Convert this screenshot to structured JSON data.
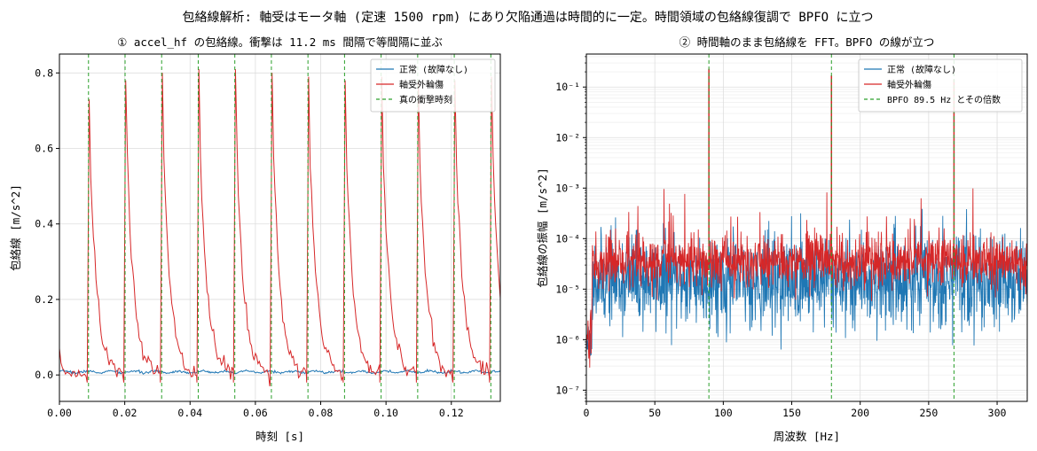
{
  "suptitle": "包絡線解析: 軸受はモータ軸 (定速 1500 rpm) にあり欠陥通過は時間的に一定。時間領域の包絡線復調で BPFO に立つ",
  "colors": {
    "normal": "#1f77b4",
    "fault": "#d62728",
    "marker": "#2ca02c",
    "grid": "#dddddd"
  },
  "chart_data": [
    {
      "type": "line",
      "title": "① accel_hf の包絡線。衝撃は 11.2 ms 間隔で等間隔に並ぶ",
      "xlabel": "時刻 [s]",
      "ylabel": "包絡線 [m/s^2]",
      "xlim": [
        0,
        0.135
      ],
      "ylim": [
        -0.07,
        0.85
      ],
      "xticks": [
        0,
        0.02,
        0.04,
        0.06,
        0.08,
        0.1,
        0.12
      ],
      "xtick_labels": [
        "0.00",
        "0.02",
        "0.04",
        "0.06",
        "0.08",
        "0.10",
        "0.12"
      ],
      "yticks": [
        0,
        0.2,
        0.4,
        0.6,
        0.8
      ],
      "ytick_labels": [
        "0.0",
        "0.2",
        "0.4",
        "0.6",
        "0.8"
      ],
      "grid": true,
      "legend": "upper right",
      "impact_times": [
        0.0089,
        0.0201,
        0.0313,
        0.0425,
        0.0537,
        0.0649,
        0.0761,
        0.0873,
        0.0985,
        0.1097,
        0.1209,
        0.1321
      ],
      "impact_peaks": [
        0.73,
        0.78,
        0.8,
        0.81,
        0.81,
        0.8,
        0.79,
        0.78,
        0.79,
        0.78,
        0.78,
        0.79
      ],
      "series": [
        {
          "name": "正常 (故障なし)",
          "baseline": 0.008
        },
        {
          "name": "軸受外輪傷",
          "decay_s": 0.0022,
          "end_value": 0.15
        },
        {
          "name": "真の衝撃時刻"
        }
      ]
    },
    {
      "type": "line",
      "title": "② 時間軸のまま包絡線を FFT。BPFO の線が立つ",
      "xlabel": "周波数 [Hz]",
      "ylabel": "包絡線の振幅 [m/s^2]",
      "xlim": [
        0,
        322
      ],
      "ylim": [
        6e-08,
        0.45
      ],
      "yscale": "log",
      "xticks": [
        0,
        50,
        100,
        150,
        200,
        250,
        300
      ],
      "xtick_labels": [
        "0",
        "50",
        "100",
        "150",
        "200",
        "250",
        "300"
      ],
      "yticks": [
        1e-07,
        1e-06,
        1e-05,
        0.0001,
        0.001,
        0.01,
        0.1
      ],
      "ytick_labels": [
        "10⁻⁷",
        "10⁻⁶",
        "10⁻⁵",
        "10⁻⁴",
        "10⁻³",
        "10⁻²",
        "10⁻¹"
      ],
      "grid": true,
      "legend": "upper right",
      "bpfo_hz": 89.5,
      "harmonics_hz": [
        89.5,
        179,
        268.5
      ],
      "peak_values": [
        0.23,
        0.17,
        0.14
      ],
      "series": [
        {
          "name": "正常 (故障なし)",
          "noise_floor": 1.5e-05
        },
        {
          "name": "軸受外輪傷",
          "noise_floor": 3.5e-05
        },
        {
          "name": "BPFO 89.5 Hz とその倍数"
        }
      ]
    }
  ]
}
